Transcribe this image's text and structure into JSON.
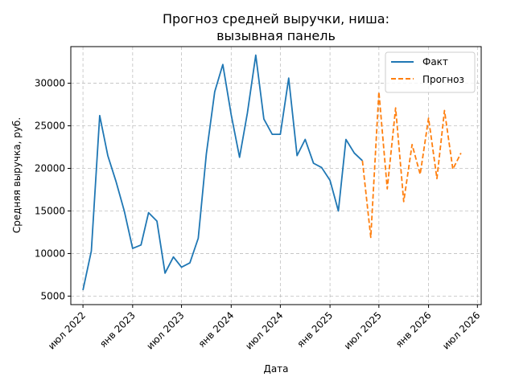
{
  "chart_data": {
    "type": "line",
    "title_lines": [
      "Прогноз средней выручки, ниша:",
      "вызывная панель"
    ],
    "xlabel": "Дата",
    "ylabel": "Средняя выручка, руб.",
    "ylim": [
      4000,
      34300
    ],
    "xlim": [
      "2022-05-17",
      "2026-07-15"
    ],
    "yticks": [
      5000,
      10000,
      15000,
      20000,
      25000,
      30000
    ],
    "ytick_labels": [
      "5000",
      "10000",
      "15000",
      "20000",
      "25000",
      "30000"
    ],
    "xticks": [
      "2022-07-01",
      "2023-01-01",
      "2023-07-01",
      "2024-01-01",
      "2024-07-01",
      "2025-01-01",
      "2025-07-01",
      "2026-01-01",
      "2026-07-01"
    ],
    "xtick_labels": [
      "июл 2022",
      "янв 2023",
      "июл 2023",
      "янв 2024",
      "июл 2024",
      "янв 2025",
      "июл 2025",
      "янв 2026",
      "июл 2026"
    ],
    "grid": true,
    "legend_position": "top-right",
    "series": [
      {
        "name": "Факт",
        "color": "#1f77b4",
        "style": "solid",
        "points": [
          [
            "2022-07-01",
            5700
          ],
          [
            "2022-08-01",
            10300
          ],
          [
            "2022-09-01",
            26200
          ],
          [
            "2022-10-01",
            21500
          ],
          [
            "2022-11-01",
            18400
          ],
          [
            "2022-12-01",
            15000
          ],
          [
            "2023-01-01",
            10600
          ],
          [
            "2023-02-01",
            11000
          ],
          [
            "2023-03-01",
            14800
          ],
          [
            "2023-04-01",
            13800
          ],
          [
            "2023-05-01",
            7700
          ],
          [
            "2023-06-01",
            9600
          ],
          [
            "2023-07-01",
            8400
          ],
          [
            "2023-08-01",
            8900
          ],
          [
            "2023-09-01",
            11800
          ],
          [
            "2023-10-01",
            21700
          ],
          [
            "2023-11-01",
            29000
          ],
          [
            "2023-12-01",
            32200
          ],
          [
            "2024-01-01",
            26300
          ],
          [
            "2024-02-01",
            21300
          ],
          [
            "2024-03-01",
            26500
          ],
          [
            "2024-04-01",
            33300
          ],
          [
            "2024-05-01",
            25800
          ],
          [
            "2024-06-01",
            24000
          ],
          [
            "2024-07-01",
            24000
          ],
          [
            "2024-08-01",
            30600
          ],
          [
            "2024-09-01",
            21500
          ],
          [
            "2024-10-01",
            23400
          ],
          [
            "2024-11-01",
            20600
          ],
          [
            "2024-12-01",
            20100
          ],
          [
            "2025-01-01",
            18600
          ],
          [
            "2025-02-01",
            15000
          ],
          [
            "2025-03-01",
            23400
          ],
          [
            "2025-04-01",
            21800
          ],
          [
            "2025-05-01",
            20900
          ]
        ]
      },
      {
        "name": "Прогноз",
        "color": "#ff7f0e",
        "style": "dashed",
        "points": [
          [
            "2025-05-01",
            20900
          ],
          [
            "2025-06-01",
            11900
          ],
          [
            "2025-07-01",
            29000
          ],
          [
            "2025-08-01",
            17600
          ],
          [
            "2025-09-01",
            27100
          ],
          [
            "2025-10-01",
            16100
          ],
          [
            "2025-11-01",
            22800
          ],
          [
            "2025-12-01",
            19300
          ],
          [
            "2026-01-01",
            25900
          ],
          [
            "2026-02-01",
            18800
          ],
          [
            "2026-03-01",
            26800
          ],
          [
            "2026-04-01",
            19900
          ],
          [
            "2026-05-01",
            21800
          ]
        ]
      }
    ]
  }
}
